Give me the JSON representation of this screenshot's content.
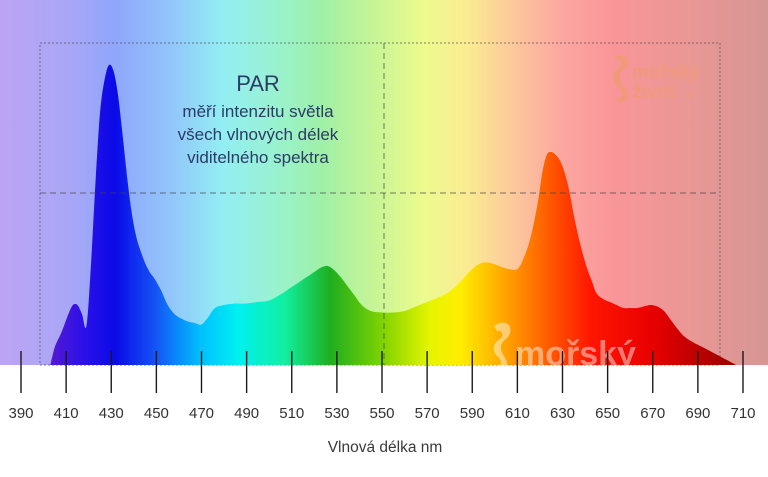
{
  "chart_data": {
    "type": "area",
    "title": "",
    "xlabel": "Vlnová délka nm",
    "ylabel": "",
    "xlim": [
      390,
      710
    ],
    "ylim": [
      0,
      1
    ],
    "x_ticks": [
      390,
      410,
      430,
      450,
      470,
      490,
      510,
      530,
      550,
      570,
      590,
      610,
      630,
      650,
      670,
      690,
      710
    ],
    "grid": false,
    "legend": "none",
    "series": [
      {
        "x": [
          403,
          405,
          408,
          411,
          413,
          415,
          417,
          419,
          421,
          423,
          425,
          427,
          429,
          431,
          433,
          435,
          437,
          439,
          441,
          443,
          445,
          447,
          449,
          452,
          455,
          458,
          461,
          464,
          467,
          470,
          473,
          476,
          480,
          485,
          490,
          495,
          500,
          505,
          510,
          515,
          520,
          523,
          526,
          529,
          532,
          535,
          538,
          541,
          545,
          550,
          555,
          560,
          565,
          570,
          575,
          580,
          585,
          590,
          594,
          598,
          602,
          606,
          610,
          613,
          616,
          619,
          621,
          623,
          625,
          627,
          629,
          631,
          633,
          635,
          637,
          639,
          641,
          643,
          645,
          648,
          651,
          654,
          657,
          660,
          663,
          666,
          669,
          672,
          675,
          678,
          681,
          684,
          688,
          692,
          697,
          702,
          707
        ],
        "values": [
          0.0,
          0.06,
          0.11,
          0.17,
          0.2,
          0.2,
          0.17,
          0.13,
          0.33,
          0.61,
          0.84,
          0.95,
          1.0,
          0.98,
          0.9,
          0.77,
          0.63,
          0.51,
          0.43,
          0.38,
          0.34,
          0.31,
          0.29,
          0.25,
          0.2,
          0.17,
          0.155,
          0.145,
          0.14,
          0.135,
          0.16,
          0.19,
          0.2,
          0.205,
          0.205,
          0.21,
          0.215,
          0.235,
          0.26,
          0.285,
          0.31,
          0.325,
          0.33,
          0.315,
          0.29,
          0.26,
          0.23,
          0.2,
          0.18,
          0.175,
          0.175,
          0.18,
          0.195,
          0.21,
          0.225,
          0.245,
          0.28,
          0.32,
          0.34,
          0.34,
          0.33,
          0.32,
          0.32,
          0.36,
          0.43,
          0.54,
          0.64,
          0.7,
          0.71,
          0.7,
          0.68,
          0.64,
          0.58,
          0.5,
          0.43,
          0.37,
          0.32,
          0.28,
          0.24,
          0.22,
          0.21,
          0.2,
          0.19,
          0.19,
          0.19,
          0.195,
          0.2,
          0.195,
          0.18,
          0.15,
          0.12,
          0.095,
          0.075,
          0.06,
          0.04,
          0.02,
          0.0
        ]
      }
    ]
  },
  "annotation": {
    "title": "PAR",
    "lines": [
      "měří intenzitu světla",
      "všech vlnových délek",
      "viditelného spektra"
    ]
  },
  "logo": {
    "line1": "mořský",
    "line2": "život",
    "suffix": ".cz",
    "watermark": "mořský"
  },
  "colors": {
    "violet": "#b898f0",
    "blue": "#1010e0",
    "green": "#1fae1f",
    "red": "#e80000",
    "logo_orange": "#f29a7a"
  }
}
